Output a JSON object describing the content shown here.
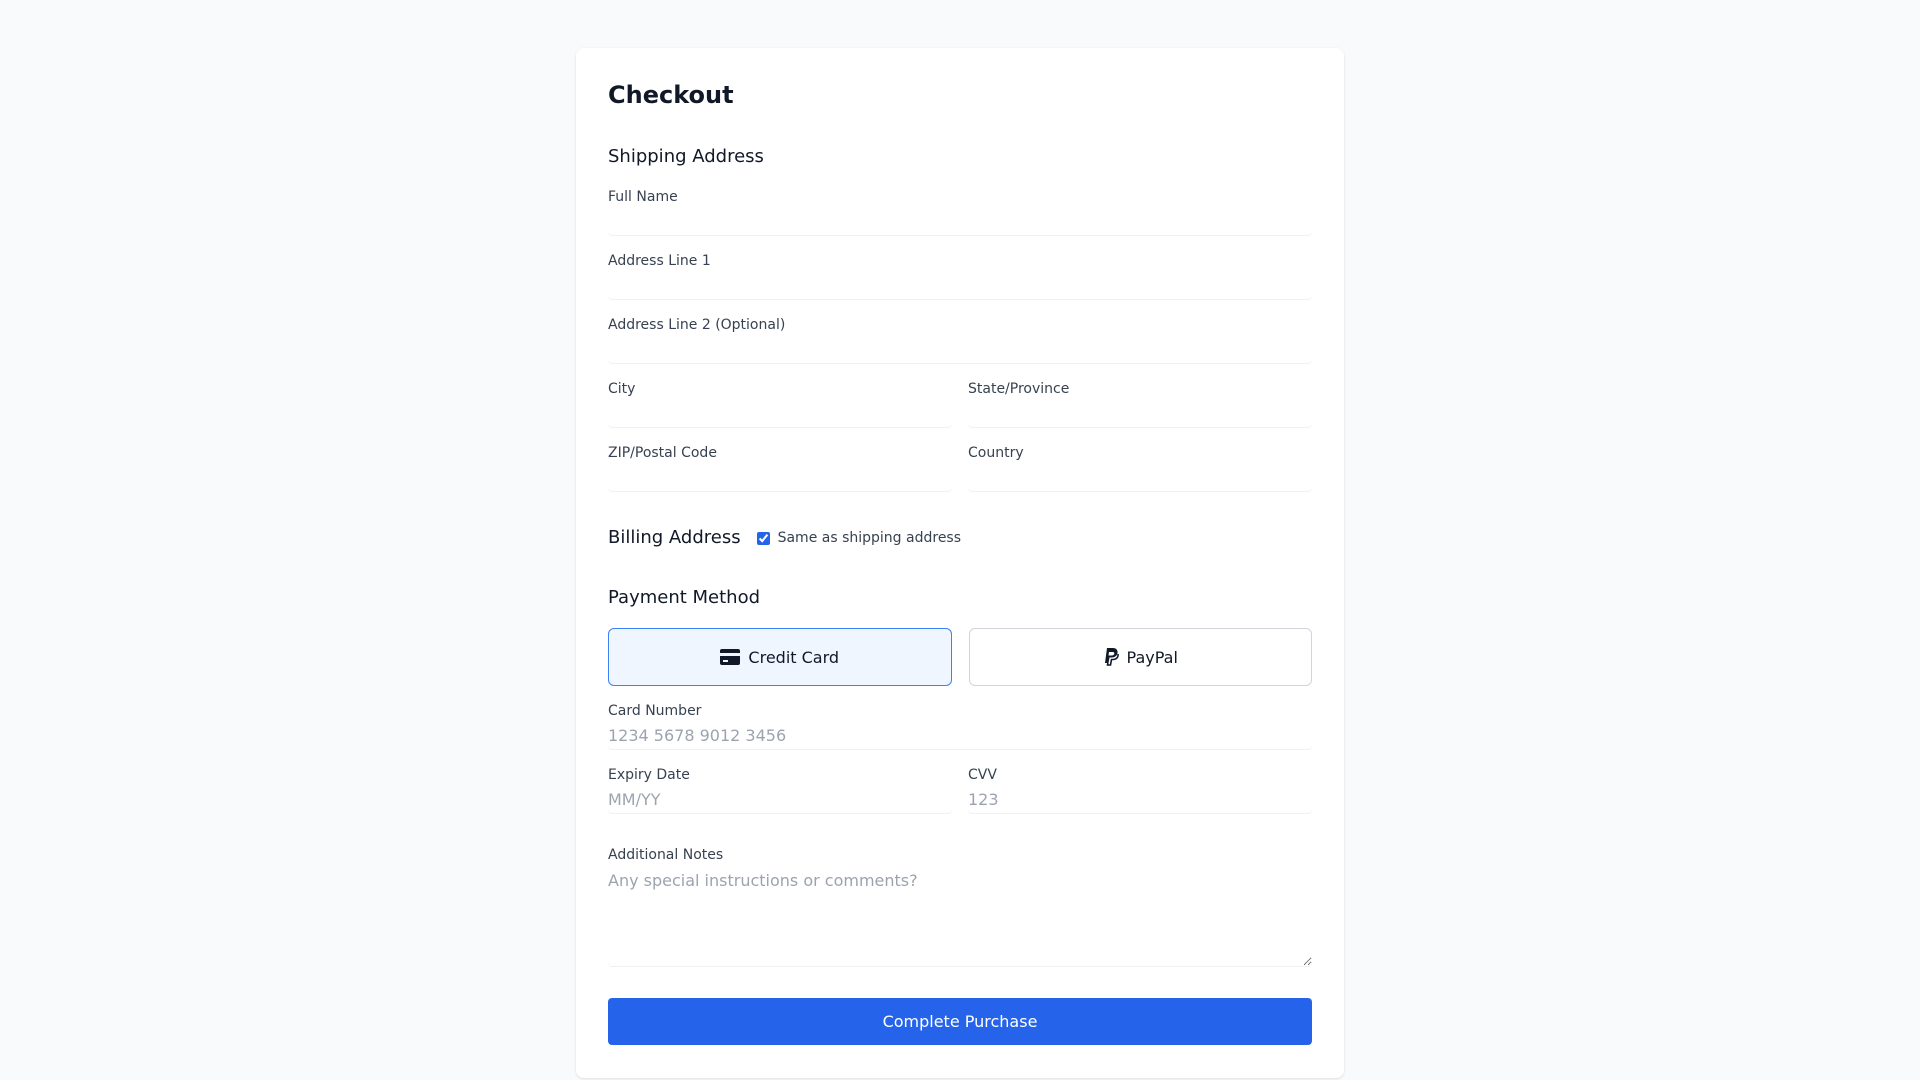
{
  "title": "Checkout",
  "shipping": {
    "heading": "Shipping Address",
    "fields": {
      "full_name": {
        "label": "Full Name",
        "value": ""
      },
      "address1": {
        "label": "Address Line 1",
        "value": ""
      },
      "address2": {
        "label": "Address Line 2 (Optional)",
        "value": ""
      },
      "city": {
        "label": "City",
        "value": ""
      },
      "state": {
        "label": "State/Province",
        "value": ""
      },
      "zip": {
        "label": "ZIP/Postal Code",
        "value": ""
      },
      "country": {
        "label": "Country",
        "value": ""
      }
    }
  },
  "billing": {
    "heading": "Billing Address",
    "same_as_shipping_label": "Same as shipping address",
    "same_as_shipping": true
  },
  "payment": {
    "heading": "Payment Method",
    "options": [
      {
        "label": "Credit Card",
        "icon": "credit-card-icon",
        "selected": true
      },
      {
        "label": "PayPal",
        "icon": "paypal-icon",
        "selected": false
      }
    ],
    "card_number": {
      "label": "Card Number",
      "placeholder": "1234 5678 9012 3456"
    },
    "expiry": {
      "label": "Expiry Date",
      "placeholder": "MM/YY"
    },
    "cvv": {
      "label": "CVV",
      "placeholder": "123"
    }
  },
  "notes": {
    "label": "Additional Notes",
    "placeholder": "Any special instructions or comments?"
  },
  "submit_label": "Complete Purchase",
  "colors": {
    "accent": "#2563eb",
    "selected_bg": "#eff6ff",
    "selected_border": "#3b82f6",
    "page_bg": "#f9fafb"
  }
}
